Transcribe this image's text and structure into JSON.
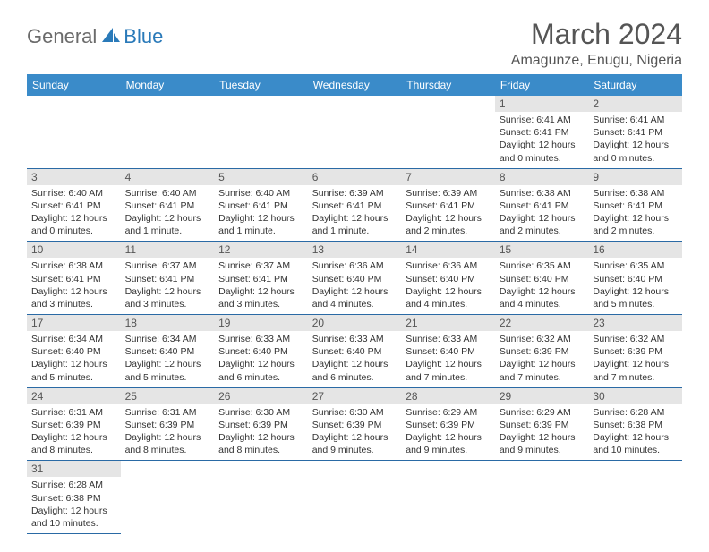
{
  "header": {
    "logo_part1": "General",
    "logo_part2": "Blue",
    "title": "March 2024",
    "location": "Amagunze, Enugu, Nigeria"
  },
  "colors": {
    "header_bg": "#3a8bc9",
    "daynum_bg": "#e5e5e5",
    "border": "#2a6aa5",
    "logo_blue": "#2a7ab9",
    "logo_gray": "#6b6b6b"
  },
  "weekdays": [
    "Sunday",
    "Monday",
    "Tuesday",
    "Wednesday",
    "Thursday",
    "Friday",
    "Saturday"
  ],
  "weeks": [
    [
      null,
      null,
      null,
      null,
      null,
      {
        "num": "1",
        "sunrise": "Sunrise: 6:41 AM",
        "sunset": "Sunset: 6:41 PM",
        "daylight": "Daylight: 12 hours and 0 minutes."
      },
      {
        "num": "2",
        "sunrise": "Sunrise: 6:41 AM",
        "sunset": "Sunset: 6:41 PM",
        "daylight": "Daylight: 12 hours and 0 minutes."
      }
    ],
    [
      {
        "num": "3",
        "sunrise": "Sunrise: 6:40 AM",
        "sunset": "Sunset: 6:41 PM",
        "daylight": "Daylight: 12 hours and 0 minutes."
      },
      {
        "num": "4",
        "sunrise": "Sunrise: 6:40 AM",
        "sunset": "Sunset: 6:41 PM",
        "daylight": "Daylight: 12 hours and 1 minute."
      },
      {
        "num": "5",
        "sunrise": "Sunrise: 6:40 AM",
        "sunset": "Sunset: 6:41 PM",
        "daylight": "Daylight: 12 hours and 1 minute."
      },
      {
        "num": "6",
        "sunrise": "Sunrise: 6:39 AM",
        "sunset": "Sunset: 6:41 PM",
        "daylight": "Daylight: 12 hours and 1 minute."
      },
      {
        "num": "7",
        "sunrise": "Sunrise: 6:39 AM",
        "sunset": "Sunset: 6:41 PM",
        "daylight": "Daylight: 12 hours and 2 minutes."
      },
      {
        "num": "8",
        "sunrise": "Sunrise: 6:38 AM",
        "sunset": "Sunset: 6:41 PM",
        "daylight": "Daylight: 12 hours and 2 minutes."
      },
      {
        "num": "9",
        "sunrise": "Sunrise: 6:38 AM",
        "sunset": "Sunset: 6:41 PM",
        "daylight": "Daylight: 12 hours and 2 minutes."
      }
    ],
    [
      {
        "num": "10",
        "sunrise": "Sunrise: 6:38 AM",
        "sunset": "Sunset: 6:41 PM",
        "daylight": "Daylight: 12 hours and 3 minutes."
      },
      {
        "num": "11",
        "sunrise": "Sunrise: 6:37 AM",
        "sunset": "Sunset: 6:41 PM",
        "daylight": "Daylight: 12 hours and 3 minutes."
      },
      {
        "num": "12",
        "sunrise": "Sunrise: 6:37 AM",
        "sunset": "Sunset: 6:41 PM",
        "daylight": "Daylight: 12 hours and 3 minutes."
      },
      {
        "num": "13",
        "sunrise": "Sunrise: 6:36 AM",
        "sunset": "Sunset: 6:40 PM",
        "daylight": "Daylight: 12 hours and 4 minutes."
      },
      {
        "num": "14",
        "sunrise": "Sunrise: 6:36 AM",
        "sunset": "Sunset: 6:40 PM",
        "daylight": "Daylight: 12 hours and 4 minutes."
      },
      {
        "num": "15",
        "sunrise": "Sunrise: 6:35 AM",
        "sunset": "Sunset: 6:40 PM",
        "daylight": "Daylight: 12 hours and 4 minutes."
      },
      {
        "num": "16",
        "sunrise": "Sunrise: 6:35 AM",
        "sunset": "Sunset: 6:40 PM",
        "daylight": "Daylight: 12 hours and 5 minutes."
      }
    ],
    [
      {
        "num": "17",
        "sunrise": "Sunrise: 6:34 AM",
        "sunset": "Sunset: 6:40 PM",
        "daylight": "Daylight: 12 hours and 5 minutes."
      },
      {
        "num": "18",
        "sunrise": "Sunrise: 6:34 AM",
        "sunset": "Sunset: 6:40 PM",
        "daylight": "Daylight: 12 hours and 5 minutes."
      },
      {
        "num": "19",
        "sunrise": "Sunrise: 6:33 AM",
        "sunset": "Sunset: 6:40 PM",
        "daylight": "Daylight: 12 hours and 6 minutes."
      },
      {
        "num": "20",
        "sunrise": "Sunrise: 6:33 AM",
        "sunset": "Sunset: 6:40 PM",
        "daylight": "Daylight: 12 hours and 6 minutes."
      },
      {
        "num": "21",
        "sunrise": "Sunrise: 6:33 AM",
        "sunset": "Sunset: 6:40 PM",
        "daylight": "Daylight: 12 hours and 7 minutes."
      },
      {
        "num": "22",
        "sunrise": "Sunrise: 6:32 AM",
        "sunset": "Sunset: 6:39 PM",
        "daylight": "Daylight: 12 hours and 7 minutes."
      },
      {
        "num": "23",
        "sunrise": "Sunrise: 6:32 AM",
        "sunset": "Sunset: 6:39 PM",
        "daylight": "Daylight: 12 hours and 7 minutes."
      }
    ],
    [
      {
        "num": "24",
        "sunrise": "Sunrise: 6:31 AM",
        "sunset": "Sunset: 6:39 PM",
        "daylight": "Daylight: 12 hours and 8 minutes."
      },
      {
        "num": "25",
        "sunrise": "Sunrise: 6:31 AM",
        "sunset": "Sunset: 6:39 PM",
        "daylight": "Daylight: 12 hours and 8 minutes."
      },
      {
        "num": "26",
        "sunrise": "Sunrise: 6:30 AM",
        "sunset": "Sunset: 6:39 PM",
        "daylight": "Daylight: 12 hours and 8 minutes."
      },
      {
        "num": "27",
        "sunrise": "Sunrise: 6:30 AM",
        "sunset": "Sunset: 6:39 PM",
        "daylight": "Daylight: 12 hours and 9 minutes."
      },
      {
        "num": "28",
        "sunrise": "Sunrise: 6:29 AM",
        "sunset": "Sunset: 6:39 PM",
        "daylight": "Daylight: 12 hours and 9 minutes."
      },
      {
        "num": "29",
        "sunrise": "Sunrise: 6:29 AM",
        "sunset": "Sunset: 6:39 PM",
        "daylight": "Daylight: 12 hours and 9 minutes."
      },
      {
        "num": "30",
        "sunrise": "Sunrise: 6:28 AM",
        "sunset": "Sunset: 6:38 PM",
        "daylight": "Daylight: 12 hours and 10 minutes."
      }
    ],
    [
      {
        "num": "31",
        "sunrise": "Sunrise: 6:28 AM",
        "sunset": "Sunset: 6:38 PM",
        "daylight": "Daylight: 12 hours and 10 minutes."
      },
      null,
      null,
      null,
      null,
      null,
      null
    ]
  ]
}
